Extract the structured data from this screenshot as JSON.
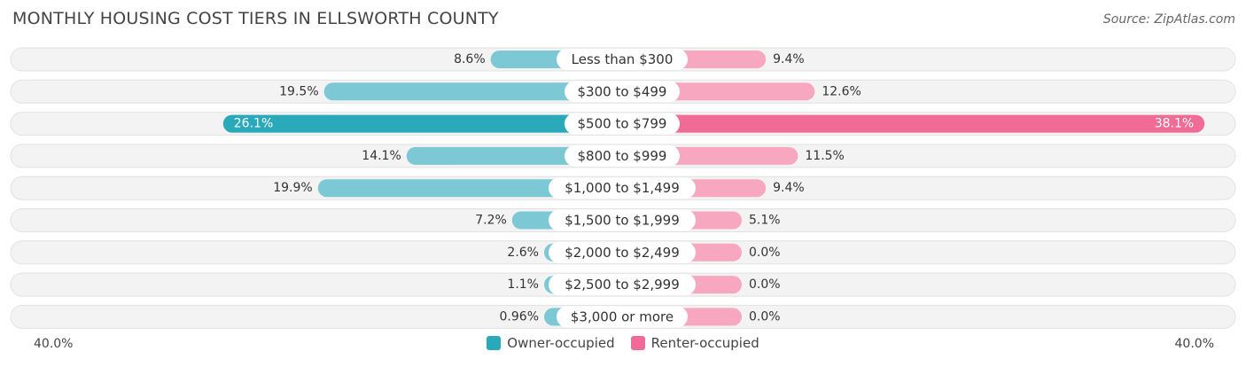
{
  "header": {
    "title": "MONTHLY HOUSING COST TIERS IN ELLSWORTH COUNTY",
    "source": "Source: ZipAtlas.com"
  },
  "axis": {
    "left_label": "40.0%",
    "right_label": "40.0%"
  },
  "legend": {
    "owner_label": "Owner-occupied",
    "renter_label": "Renter-occupied"
  },
  "colors": {
    "owner": "#7cc8d4",
    "owner_strong": "#29a9ba",
    "renter": "#f7a8c0",
    "renter_strong": "#f06b96",
    "track": "#f1f1f1"
  },
  "chart_data": {
    "type": "bar",
    "orientation": "horizontal-diverging",
    "title": "MONTHLY HOUSING COST TIERS IN ELLSWORTH COUNTY",
    "xlim": [
      -40,
      40
    ],
    "legend_position": "bottom-center",
    "categories": [
      "Less than $300",
      "$300 to $499",
      "$500 to $799",
      "$800 to $999",
      "$1,000 to $1,499",
      "$1,500 to $1,999",
      "$2,000 to $2,499",
      "$2,500 to $2,999",
      "$3,000 or more"
    ],
    "series": [
      {
        "name": "Owner-occupied",
        "values": [
          8.6,
          19.5,
          26.1,
          14.1,
          19.9,
          7.2,
          2.6,
          1.1,
          0.96
        ],
        "labels": [
          "8.6%",
          "19.5%",
          "26.1%",
          "14.1%",
          "19.9%",
          "7.2%",
          "2.6%",
          "1.1%",
          "0.96%"
        ]
      },
      {
        "name": "Renter-occupied",
        "values": [
          9.4,
          12.6,
          38.1,
          11.5,
          9.4,
          5.1,
          0.0,
          0.0,
          0.0
        ],
        "labels": [
          "9.4%",
          "12.6%",
          "38.1%",
          "11.5%",
          "9.4%",
          "5.1%",
          "0.0%",
          "0.0%",
          "0.0%"
        ]
      }
    ]
  }
}
